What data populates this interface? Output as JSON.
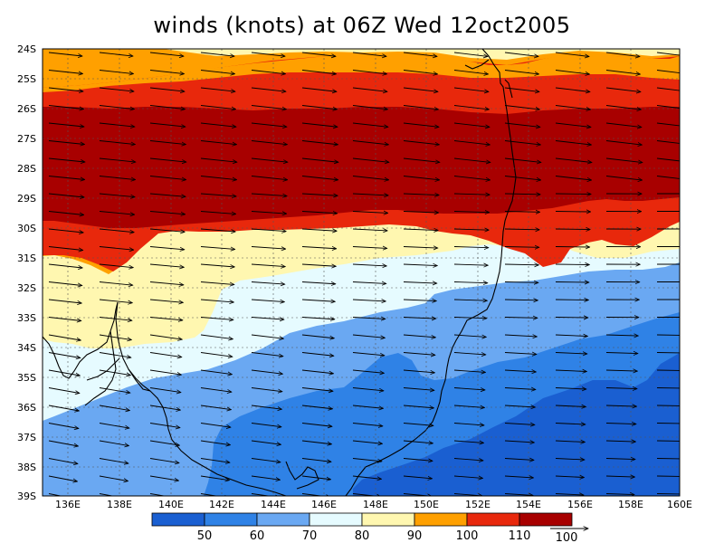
{
  "title": "winds (knots) at 06Z Wed 12oct2005",
  "map": {
    "lon_labels": [
      "136E",
      "138E",
      "140E",
      "142E",
      "144E",
      "146E",
      "148E",
      "150E",
      "152E",
      "154E",
      "156E",
      "158E",
      "160E"
    ],
    "lat_labels": [
      "24S",
      "25S",
      "26S",
      "27S",
      "28S",
      "29S",
      "30S",
      "31S",
      "32S",
      "33S",
      "34S",
      "35S",
      "36S",
      "37S",
      "38S",
      "39S"
    ],
    "lon_range": [
      135,
      160
    ],
    "lat_range": [
      -24,
      -39
    ],
    "gridlines": true
  },
  "colorbar": {
    "colors": [
      "#1a5fd1",
      "#2f82e6",
      "#6aa8f2",
      "#e6fbff",
      "#fff7b0",
      "#ffa000",
      "#e8280c",
      "#a80000"
    ],
    "labels": [
      "50",
      "60",
      "70",
      "80",
      "90",
      "100",
      "110"
    ],
    "reference_vector_label": "100"
  },
  "wind_field": {
    "fill_colors": {
      "c40": "#1a5fd1",
      "c50": "#2f82e6",
      "c60": "#6aa8f2",
      "c70": "#e6fbff",
      "c80": "#fff7b0",
      "c90": "#ffa000",
      "c100": "#e8280c",
      "c110": "#a80000"
    }
  }
}
